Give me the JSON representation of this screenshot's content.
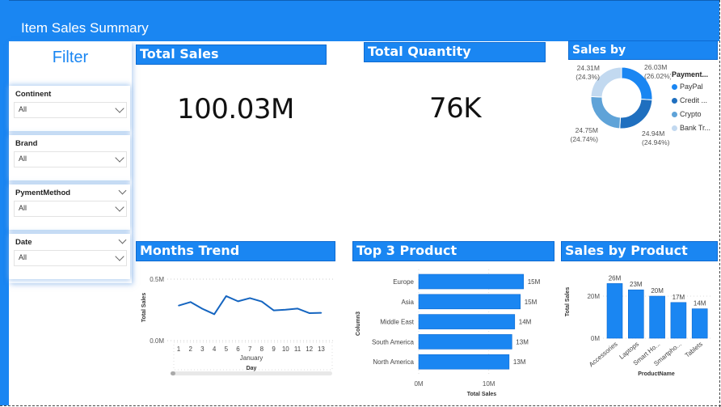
{
  "app": {
    "title": "Item Sales Summary"
  },
  "filter_panel": {
    "title": "Filter",
    "slicers": [
      {
        "label": "Continent",
        "value": "All",
        "has_header_chevron": false
      },
      {
        "label": "Brand",
        "value": "All",
        "has_header_chevron": false
      },
      {
        "label": "PymentMethod",
        "value": "All",
        "has_header_chevron": true
      },
      {
        "label": "Date",
        "value": "All",
        "has_header_chevron": true
      }
    ]
  },
  "kpis": {
    "total_sales": {
      "title": "Total Sales",
      "value": "100.03M"
    },
    "total_quantity": {
      "title": "Total Quantity",
      "value": "76K"
    }
  },
  "colors": {
    "accent": "#1a86f2",
    "paypal": "#1a86f2",
    "credit": "#1f6fbf",
    "crypto": "#5fa3d8",
    "bank": "#c2d9f0"
  },
  "chart_data": [
    {
      "id": "payment_donut",
      "type": "pie",
      "title": "Sales by PaymentMethod",
      "legend_title": "Payment...",
      "legend_position": "right",
      "slices": [
        {
          "name": "PayPal",
          "legend_label": "PayPal",
          "value": 26.03,
          "label": "26.03M",
          "pct_label": "(26.02%)",
          "color": "#1a86f2"
        },
        {
          "name": "Credit Card",
          "legend_label": "Credit ...",
          "value": 24.94,
          "label": "24.94M",
          "pct_label": "(24.94%)",
          "color": "#1f6fbf"
        },
        {
          "name": "Crypto",
          "legend_label": "Crypto",
          "value": 24.75,
          "label": "24.75M",
          "pct_label": "(24.74%)",
          "color": "#5fa3d8"
        },
        {
          "name": "Bank Transfer",
          "legend_label": "Bank Tr...",
          "value": 24.31,
          "label": "24.31M",
          "pct_label": "(24.3%)",
          "color": "#c2d9f0"
        }
      ]
    },
    {
      "id": "months_trend",
      "type": "line",
      "title": "Months Trend",
      "xlabel": "Day",
      "x_group_label": "January",
      "ylabel": "Total Sales",
      "ylim": [
        0,
        0.5
      ],
      "yticks": [
        "0.0M",
        "0.5M"
      ],
      "x": [
        1,
        2,
        3,
        4,
        5,
        6,
        7,
        8,
        9,
        10,
        11,
        12,
        13
      ],
      "values": [
        0.285,
        0.314,
        0.259,
        0.215,
        0.362,
        0.32,
        0.346,
        0.318,
        0.246,
        0.252,
        0.261,
        0.224,
        0.226
      ],
      "units": "M"
    },
    {
      "id": "top3_product",
      "type": "bar",
      "orientation": "horizontal",
      "title": "Top 3 Product",
      "xlabel": "Total Sales",
      "ylabel": "Column3",
      "xlim": [
        0,
        16
      ],
      "xticks": [
        "0M",
        "10M"
      ],
      "categories": [
        "Europe",
        "Asia",
        "Middle East",
        "South America",
        "North America"
      ],
      "values": [
        14.96,
        14.5,
        13.7,
        13.3,
        12.9
      ],
      "data_labels": [
        "15M",
        "15M",
        "14M",
        "13M",
        "13M"
      ]
    },
    {
      "id": "sales_by_product",
      "type": "bar",
      "title": "Sales by Product",
      "xlabel": "ProductName",
      "ylabel": "Total Sales",
      "ylim": [
        0,
        27
      ],
      "yticks": [
        "0M",
        "20M"
      ],
      "categories": [
        "Accessories",
        "Laptops",
        "Smart Ho...",
        "Smartpho...",
        "Tablets"
      ],
      "values": [
        26,
        23,
        20,
        17,
        14
      ],
      "data_labels": [
        "26M",
        "23M",
        "20M",
        "17M",
        "14M"
      ]
    }
  ]
}
